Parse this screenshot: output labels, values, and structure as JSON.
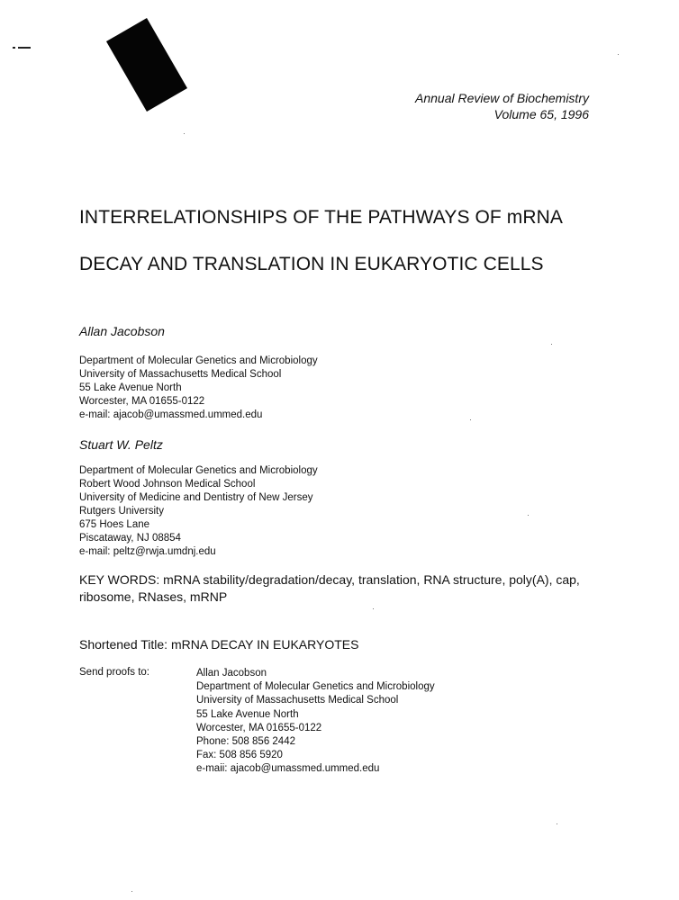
{
  "journal": {
    "line1": "Annual Review of Biochemistry",
    "line2": "Volume 65, 1996"
  },
  "title": {
    "line1": "INTERRELATIONSHIPS OF THE PATHWAYS OF mRNA",
    "line2": "DECAY AND TRANSLATION IN EUKARYOTIC CELLS"
  },
  "authors": [
    {
      "name": "Allan Jacobson",
      "address": [
        "Department of Molecular Genetics and Microbiology",
        "University of Massachusetts Medical School",
        "55 Lake Avenue North",
        "Worcester, MA 01655-0122",
        "e-mail: ajacob@umassmed.ummed.edu"
      ]
    },
    {
      "name": "Stuart W. Peltz",
      "address": [
        "Department of Molecular Genetics and Microbiology",
        "Robert Wood Johnson Medical School",
        "University of Medicine and Dentistry of New Jersey",
        "Rutgers University",
        "675 Hoes Lane",
        "Piscataway, NJ 08854",
        "e-mail: peltz@rwja.umdnj.edu"
      ]
    }
  ],
  "keywords": "KEY WORDS: mRNA stability/degradation/decay, translation, RNA structure, poly(A), cap, ribosome, RNases, mRNP",
  "shortened_title": "Shortened Title: mRNA DECAY IN EUKARYOTES",
  "proofs": {
    "label": "Send proofs to:",
    "lines": [
      "Allan Jacobson",
      "Department of Molecular Genetics and Microbiology",
      "University of Massachusetts Medical School",
      "55 Lake Avenue North",
      "Worcester, MA  01655-0122",
      "Phone: 508 856 2442",
      "Fax: 508 856 5920",
      "e-maii: ajacob@umassmed.ummed.edu"
    ]
  }
}
